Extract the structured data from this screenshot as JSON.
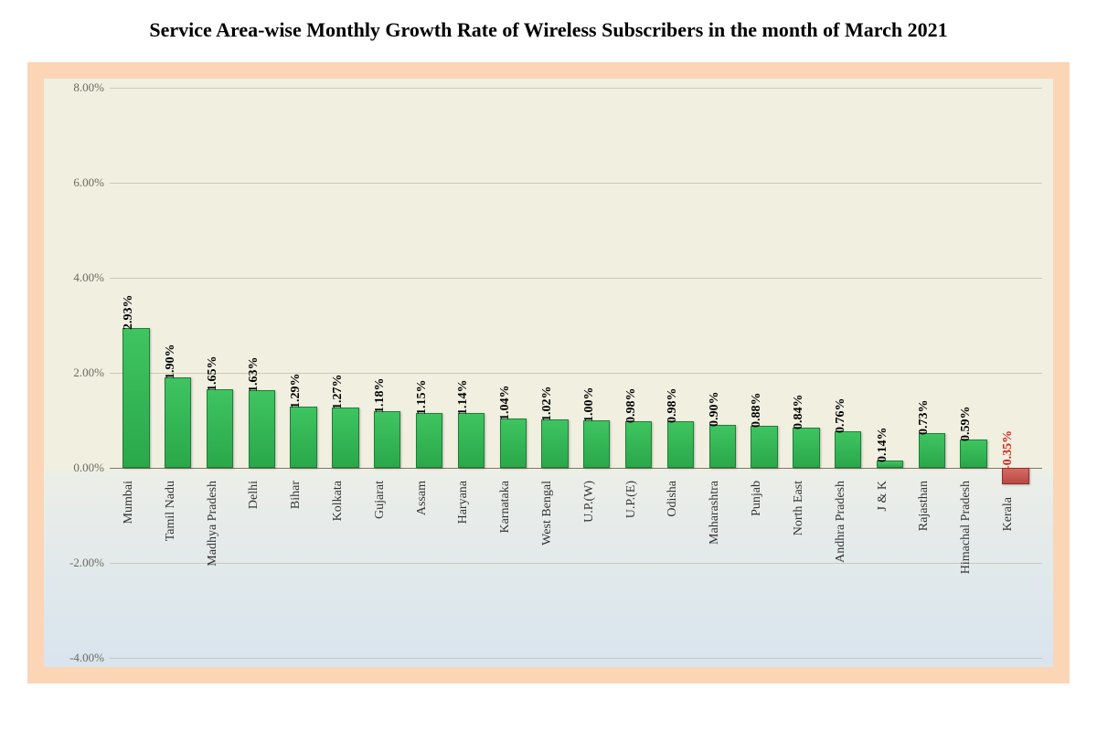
{
  "title": "Service Area-wise Monthly Growth Rate of Wireless Subscribers in the month of March 2021",
  "title_fontsize": 22,
  "chart": {
    "type": "bar",
    "ylim": [
      -4,
      8
    ],
    "ytick_step": 2,
    "yticks": [
      -4,
      -2,
      0,
      2,
      4,
      6,
      8
    ],
    "ytick_labels": [
      "-4.00%",
      "-2.00%",
      "0.00%",
      "2.00%",
      "4.00%",
      "6.00%",
      "8.00%"
    ],
    "ytick_fontsize": 13,
    "value_label_fontsize": 14,
    "category_label_fontsize": 14,
    "outer_background": "#fbd5b5",
    "plot_background_top": "#f0efe0",
    "plot_background_bottom": "#d8e4ee",
    "gridline_color": "#c9c8ba",
    "zero_line_color": "#7a7a6e",
    "bar_positive_color": "#2aa84a",
    "bar_negative_color": "#b84a42",
    "bar_width": 0.64,
    "value_label_color_positive": "#000000",
    "value_label_color_negative": "#d4251a",
    "categories": [
      "Mumbai",
      "Tamil Nadu",
      "Madhya Pradesh",
      "Delhi",
      "Bihar",
      "Kolkata",
      "Gujarat",
      "Assam",
      "Haryana",
      "Karnataka",
      "West Bengal",
      "U.P.(W)",
      "U.P.(E)",
      "Odisha",
      "Maharashtra",
      "Punjab",
      "North East",
      "Andhra Pradesh",
      "J & K",
      "Rajasthan",
      "Himachal Pradesh",
      "Kerala"
    ],
    "values": [
      2.93,
      1.9,
      1.65,
      1.63,
      1.29,
      1.27,
      1.18,
      1.15,
      1.14,
      1.04,
      1.02,
      1.0,
      0.98,
      0.98,
      0.9,
      0.88,
      0.84,
      0.76,
      0.14,
      0.73,
      0.59,
      -0.35
    ],
    "value_labels": [
      "2.93%",
      "1.90%",
      "1.65%",
      "1.63%",
      "1.29%",
      "1.27%",
      "1.18%",
      "1.15%",
      "1.14%",
      "1.04%",
      "1.02%",
      "1.00%",
      "0.98%",
      "0.98%",
      "0.90%",
      "0.88%",
      "0.84%",
      "0.76%",
      "0.14%",
      "0.73%",
      "0.59%",
      "-0.35%"
    ]
  }
}
